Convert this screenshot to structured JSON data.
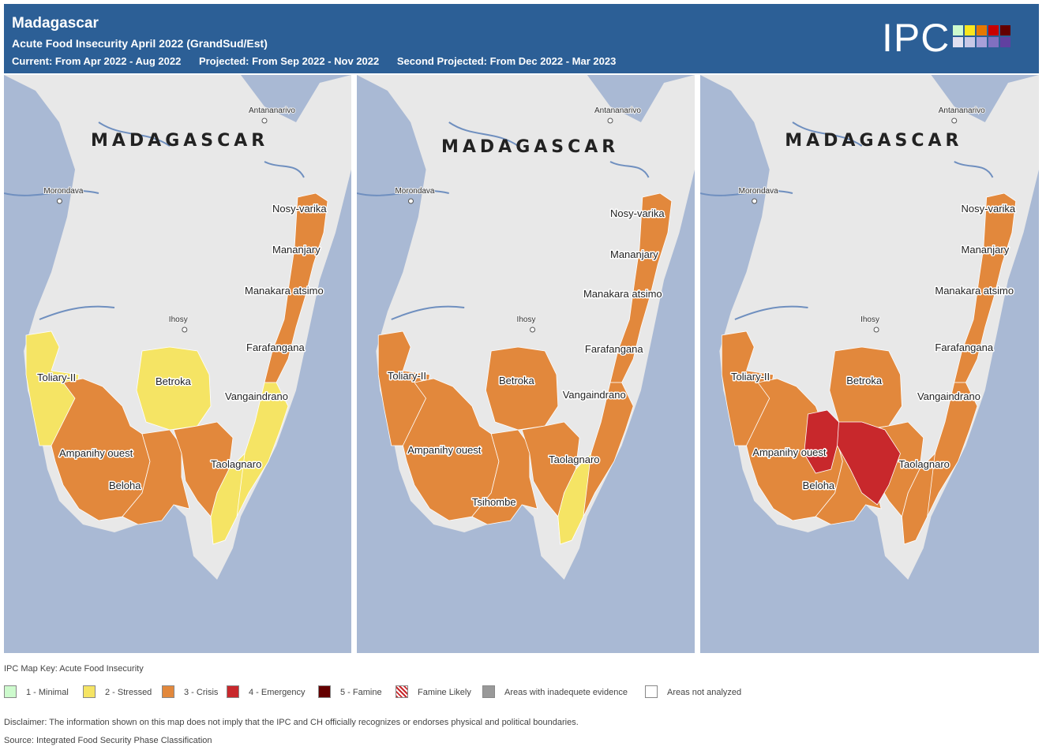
{
  "header": {
    "title": "Madagascar",
    "subtitle": "Acute Food Insecurity April 2022 (GrandSud/Est)",
    "current": "Current: From Apr 2022 - Aug 2022",
    "projected": "Projected: From Sep 2022 - Nov 2022",
    "second_projected": "Second Projected: From Dec 2022 - Mar 2023",
    "logo_text": "IPC",
    "logo_colors": [
      "#cdfacd",
      "#fae61e",
      "#e67800",
      "#c80000",
      "#640000",
      "#e0e0f0",
      "#c8c8e6",
      "#a8a0d8",
      "#8070c0",
      "#6040a0"
    ]
  },
  "maps": {
    "country_label": "MADAGASCAR",
    "cities": {
      "antananarivo": "Antananarivo",
      "morondava": "Morondava",
      "ihosy": "Ihosy"
    },
    "colors": {
      "sea": "#a9b9d4",
      "land": "#e8e8e8",
      "minimal": "#cdfacd",
      "stressed": "#f5e464",
      "crisis": "#e2883c",
      "emergency": "#c8282c",
      "famine": "#640000",
      "inadequate": "#999999",
      "not_analyzed": "#ffffff"
    },
    "panels": [
      {
        "labels": {
          "nosy_varika": "Nosy-varika",
          "mananjary": "Mananjary",
          "manakara": "Manakara atsimo",
          "farafangana": "Farafangana",
          "vangaindrano": "Vangaindrano",
          "toliary": "Toliary-II",
          "betroka": "Betroka",
          "ampanihy": "Ampanihy ouest",
          "beloha": "Beloha",
          "taolagnaro": "Taolagnaro"
        },
        "phases": {
          "toliary_coast": "stressed",
          "betroka": "stressed",
          "southeast_coast": "stressed",
          "southwest": "crisis",
          "south_center": "crisis",
          "anosy_north": "crisis",
          "south_east_tip": "stressed",
          "east_coast": "crisis",
          "emergency_zone": "none"
        }
      },
      {
        "labels": {
          "nosy_varika": "Nosy-varika",
          "mananjary": "Mananjary",
          "manakara": "Manakara atsimo",
          "farafangana": "Farafangana",
          "vangaindrano": "Vangaindrano",
          "toliary": "Toliary-II",
          "betroka": "Betroka",
          "ampanihy": "Ampanihy ouest",
          "tsihombe": "Tsihombe",
          "taolagnaro": "Taolagnaro"
        },
        "phases": {
          "toliary_coast": "crisis",
          "betroka": "crisis",
          "southeast_coast": "crisis",
          "southwest": "crisis",
          "south_center": "crisis",
          "anosy_north": "crisis",
          "south_east_tip": "stressed",
          "east_coast": "crisis",
          "emergency_zone": "none"
        }
      },
      {
        "labels": {
          "nosy_varika": "Nosy-varika",
          "mananjary": "Mananjary",
          "manakara": "Manakara atsimo",
          "farafangana": "Farafangana",
          "vangaindrano": "Vangaindrano",
          "toliary": "Toliary-II",
          "betroka": "Betroka",
          "ampanihy": "Ampanihy ouest",
          "beloha": "Beloha",
          "taolagnaro": "Taolagnaro"
        },
        "phases": {
          "toliary_coast": "crisis",
          "betroka": "crisis",
          "southeast_coast": "crisis",
          "southwest": "crisis",
          "south_center": "crisis",
          "anosy_north": "crisis",
          "south_east_tip": "crisis",
          "east_coast": "crisis",
          "emergency_zone": "emergency"
        }
      }
    ]
  },
  "legend": {
    "title": "IPC Map Key: Acute Food Insecurity",
    "items": [
      {
        "label": "1 - Minimal",
        "color": "#cdfacd"
      },
      {
        "label": "2 - Stressed",
        "color": "#f5e464"
      },
      {
        "label": "3 - Crisis",
        "color": "#e2883c"
      },
      {
        "label": "4 - Emergency",
        "color": "#c8282c"
      },
      {
        "label": "5 - Famine",
        "color": "#640000"
      },
      {
        "label": "Famine Likely",
        "color": "hatch"
      },
      {
        "label": "Areas with inadequete evidence",
        "color": "#999999"
      },
      {
        "label": "Areas not analyzed",
        "color": "#ffffff"
      }
    ],
    "disclaimer": "Disclaimer: The information shown on this map does not imply that the IPC and CH officially recognizes or endorses physical and political boundaries.",
    "source": "Source: Integrated Food Security Phase Classification"
  }
}
